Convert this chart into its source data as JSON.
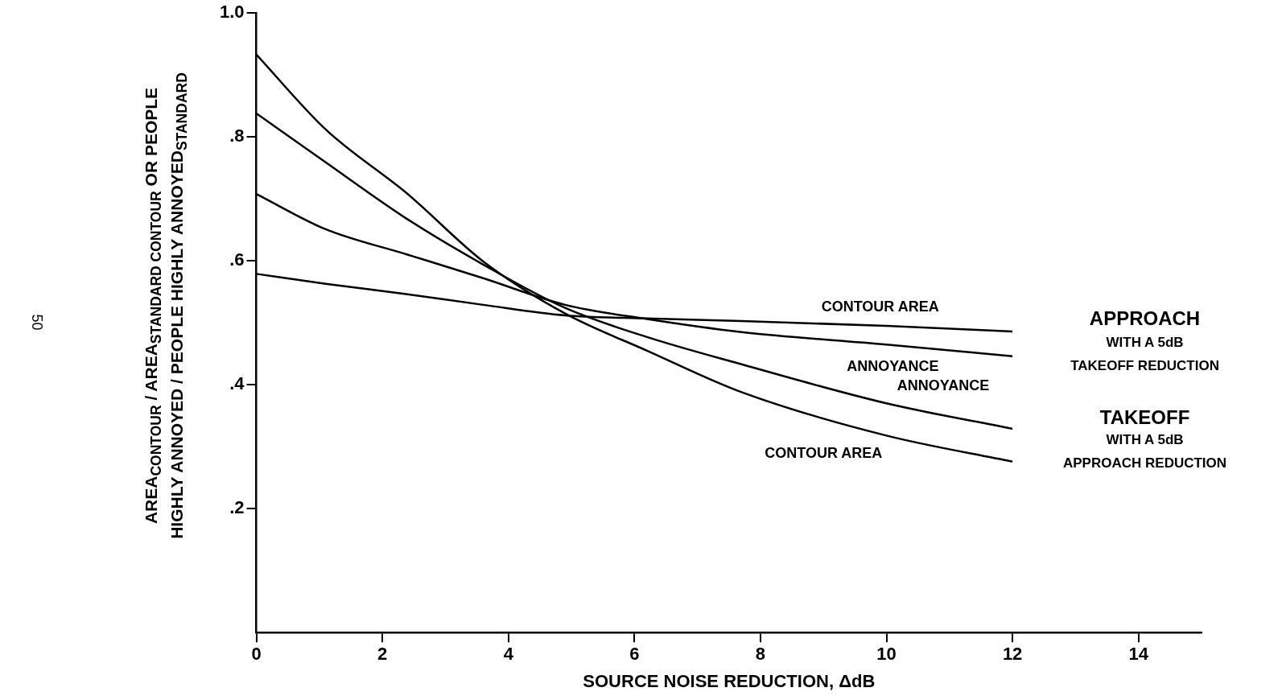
{
  "chart_data": {
    "type": "line",
    "xlabel": "SOURCE NOISE REDUCTION, ΔdB",
    "ylabel": "AREA$_{CONTOUR}$ / AREA$_{STANDARD CONTOUR}$ OR PEOPLE HIGHLY ANNOYED / PEOPLE HIGHLY ANNOYED$_{STANDARD}$",
    "x": [
      0,
      1.1,
      2.4,
      3.6,
      4.9,
      6.2,
      7.7,
      10,
      12
    ],
    "series": [
      {
        "color": "#000000",
        "values": [
          0.933,
          0.812,
          0.708,
          0.599,
          0.515,
          0.455,
          0.388,
          0.318,
          0.276
        ]
      },
      {
        "color": "#000000",
        "values": [
          0.838,
          0.759,
          0.667,
          0.594,
          0.524,
          0.477,
          0.433,
          0.37,
          0.329
        ]
      },
      {
        "color": "#000000",
        "values": [
          0.708,
          0.651,
          0.61,
          0.572,
          0.529,
          0.506,
          0.485,
          0.465,
          0.446
        ]
      },
      {
        "color": "#000000",
        "values": [
          0.579,
          0.563,
          0.546,
          0.529,
          0.512,
          0.507,
          0.503,
          0.495,
          0.486
        ]
      }
    ],
    "xlim": [
      0,
      15
    ],
    "xticks": [
      0,
      2,
      4,
      6,
      8,
      10,
      12,
      14
    ],
    "ylim": [
      0,
      1
    ],
    "yticks": [
      {
        "value": 0.2,
        "label": ".2"
      },
      {
        "value": 0.4,
        "label": ".4"
      },
      {
        "value": 0.6,
        "label": ".6"
      },
      {
        "value": 0.8,
        "label": ".8"
      },
      {
        "value": 1,
        "label": "1.0"
      }
    ],
    "grid": false,
    "legend": false,
    "marker": "none",
    "line_style": "solid",
    "annotations": [
      "CONTOUR AREA",
      "ANNOYANCE",
      "ANNOYANCE",
      "CONTOUR AREA",
      "APPROACH",
      "WITH A 5dB",
      "TAKEOFF REDUCTION",
      "TAKEOFF",
      "WITH A 5dB",
      "APPROACH REDUCTION",
      "50"
    ]
  }
}
